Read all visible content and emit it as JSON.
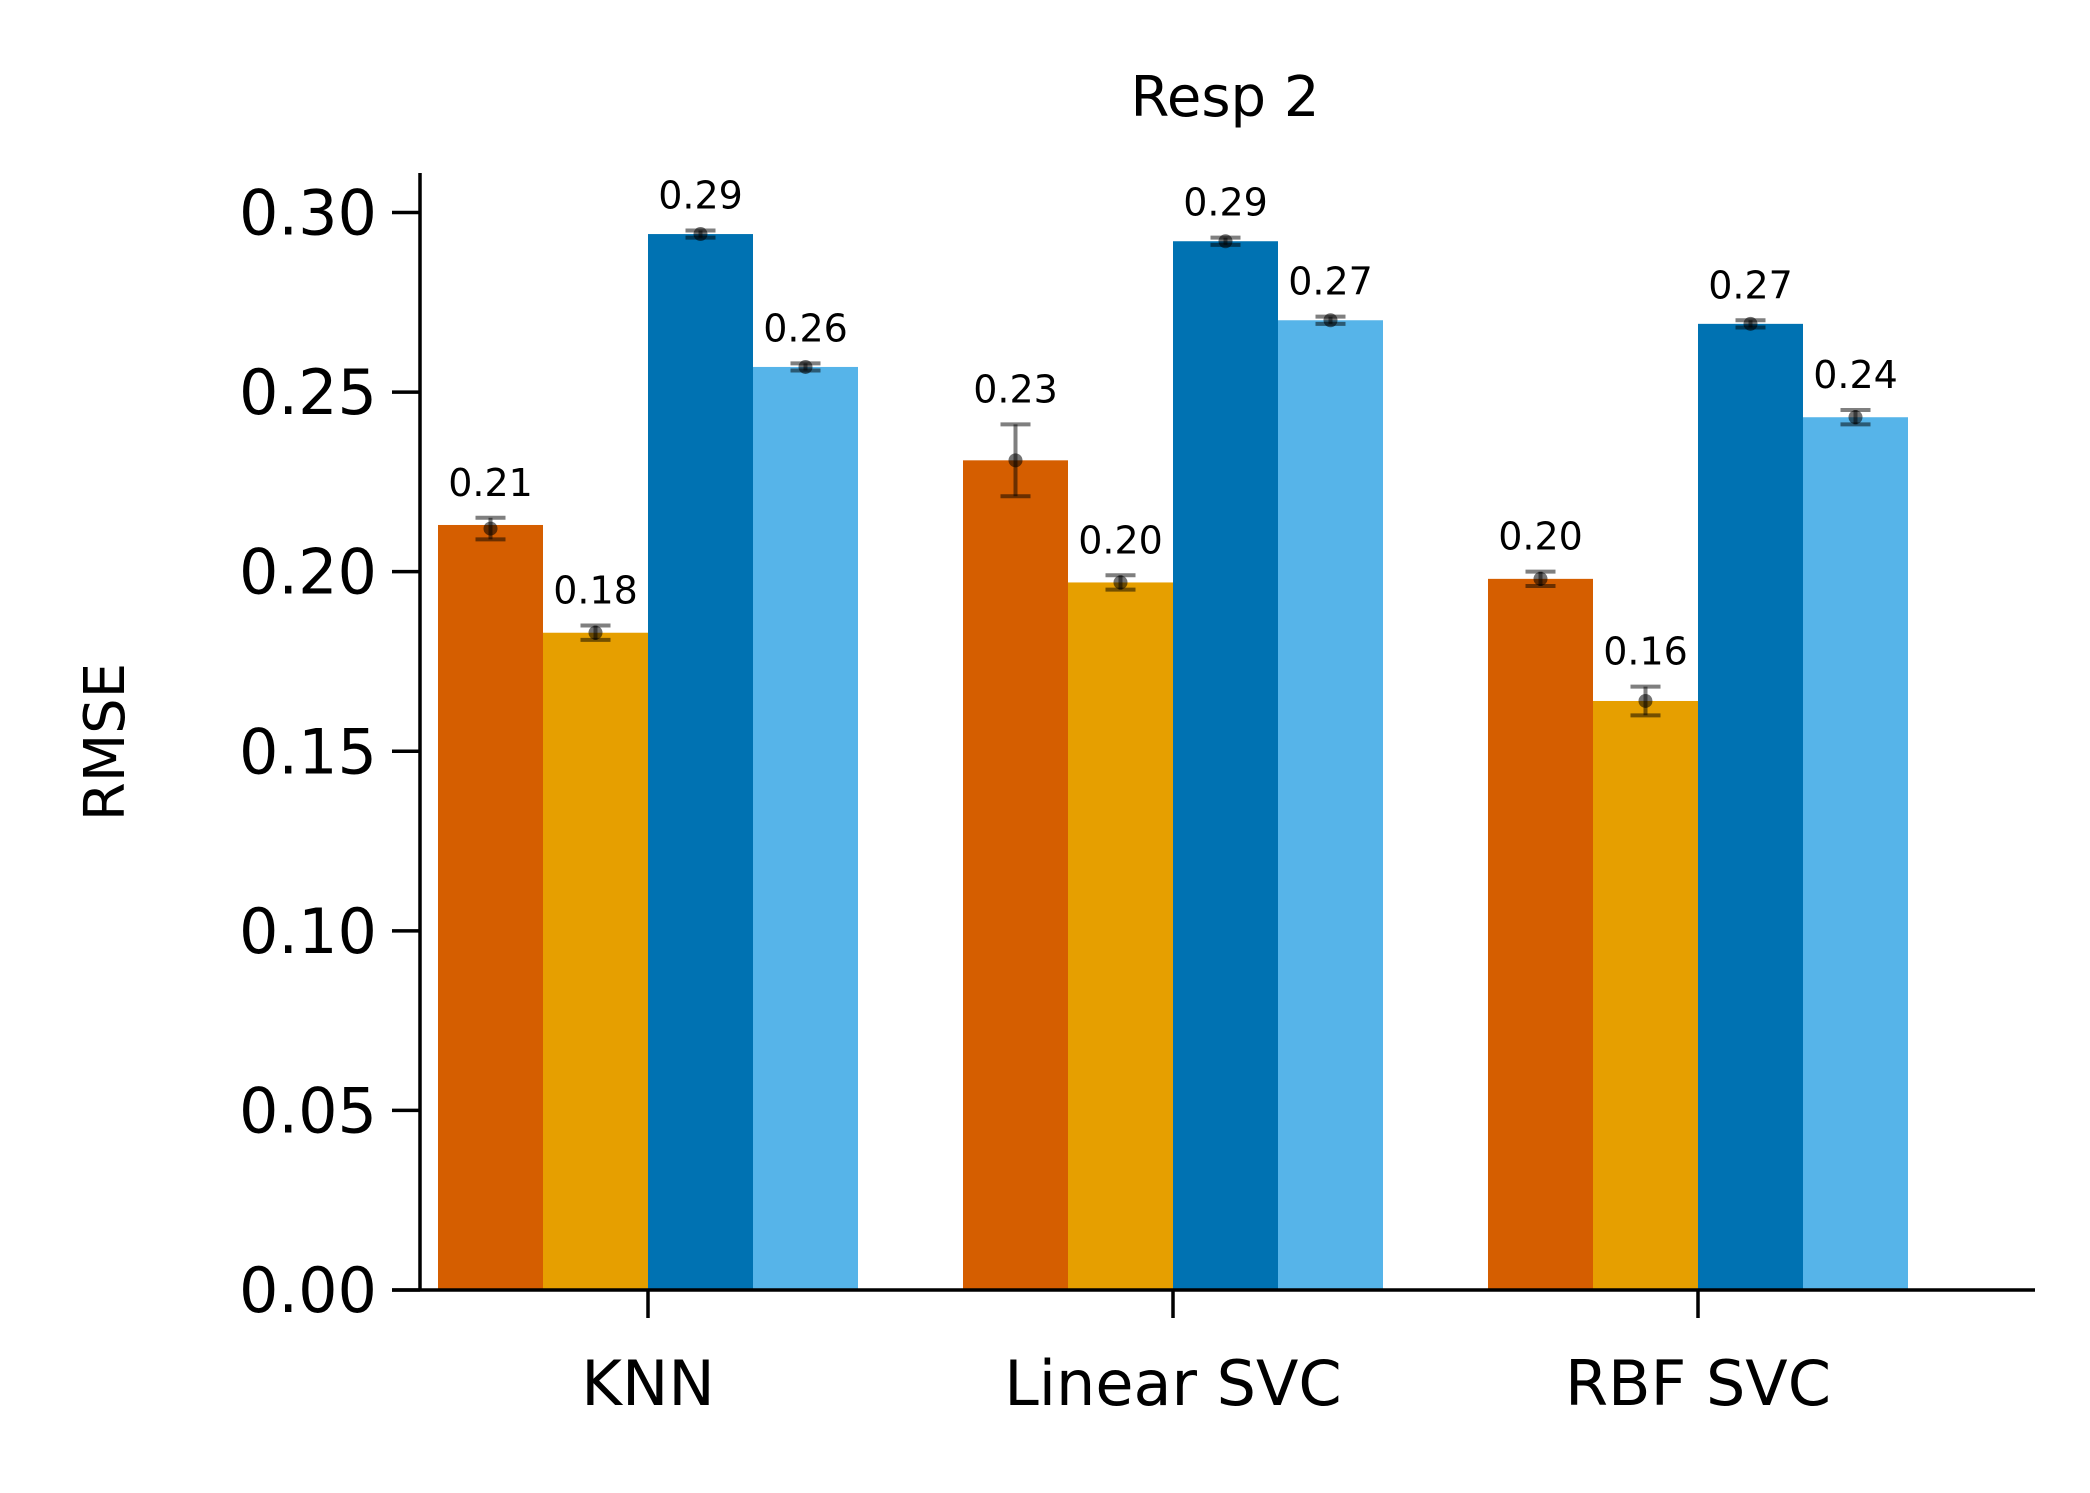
{
  "chart_data": {
    "type": "bar",
    "title": "Resp 2",
    "xlabel": "",
    "ylabel": "RMSE",
    "categories": [
      "KNN",
      "Linear SVC",
      "RBF SVC"
    ],
    "ylim": [
      0,
      0.311
    ],
    "yticks": [
      0.0,
      0.05,
      0.1,
      0.15,
      0.2,
      0.25,
      0.3
    ],
    "ytick_labels": [
      "0.00",
      "0.05",
      "0.10",
      "0.15",
      "0.20",
      "0.25",
      "0.30"
    ],
    "grid": false,
    "legend": "none",
    "series": [
      {
        "color": "#D55E00",
        "values": [
          0.213,
          0.231,
          0.198
        ],
        "errors": [
          0.003,
          0.01,
          0.002
        ],
        "point_values": [
          0.212,
          0.231,
          0.198
        ],
        "labels": [
          "0.21",
          "0.23",
          "0.20"
        ]
      },
      {
        "color": "#E69F00",
        "values": [
          0.183,
          0.197,
          0.164
        ],
        "errors": [
          0.002,
          0.002,
          0.004
        ],
        "point_values": [
          0.183,
          0.197,
          0.164
        ],
        "labels": [
          "0.18",
          "0.20",
          "0.16"
        ]
      },
      {
        "color": "#0072B2",
        "values": [
          0.294,
          0.292,
          0.269
        ],
        "errors": [
          0.001,
          0.001,
          0.001
        ],
        "point_values": [
          0.294,
          0.292,
          0.269
        ],
        "labels": [
          "0.29",
          "0.29",
          "0.27"
        ]
      },
      {
        "color": "#56B4E9",
        "values": [
          0.257,
          0.27,
          0.243
        ],
        "errors": [
          0.001,
          0.001,
          0.002
        ],
        "point_values": [
          0.257,
          0.27,
          0.243
        ],
        "labels": [
          "0.26",
          "0.27",
          "0.24"
        ]
      }
    ]
  }
}
